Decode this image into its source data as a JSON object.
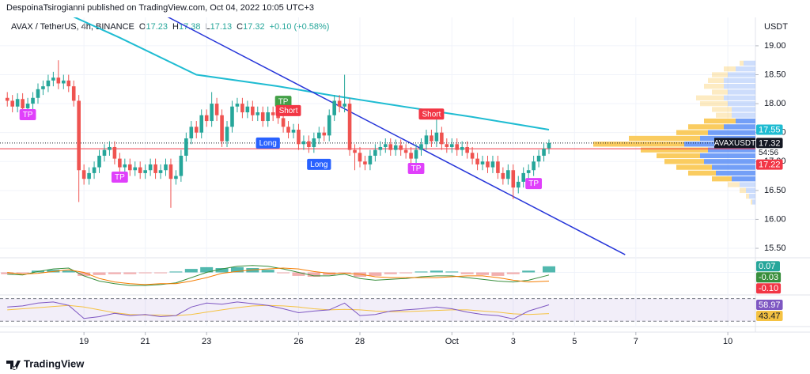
{
  "header": {
    "publisher": "DespoinaTsirogianni published on TradingView.com, Oct 04, 2022 10:05 UTC+3"
  },
  "footer": {
    "brand": "TradingView"
  },
  "chart_data": [
    {
      "type": "candlestick",
      "title": "AVAX / TetherUS, 4h, BINANCE",
      "legend": [
        {
          "label": "O",
          "value": "17.23"
        },
        {
          "label": "H",
          "value": "17.38"
        },
        {
          "label": "L",
          "value": "17.13"
        },
        {
          "label": "C",
          "value": "17.32"
        }
      ],
      "change": "+0.10 (+0.58%)",
      "y_unit": "USDT",
      "xlim": [
        -1.43,
        146.4
      ],
      "ylim": [
        15.35,
        19.45
      ],
      "xticks": [
        {
          "value": 15,
          "label": "19"
        },
        {
          "value": 27,
          "label": "21"
        },
        {
          "value": 39,
          "label": "23"
        },
        {
          "value": 57,
          "label": "26"
        },
        {
          "value": 69,
          "label": "28"
        },
        {
          "value": 87,
          "label": "Oct"
        },
        {
          "value": 99,
          "label": "3"
        },
        {
          "value": 111,
          "label": "5"
        },
        {
          "value": 123,
          "label": "7"
        },
        {
          "value": 141,
          "label": "10"
        }
      ],
      "yticks": [
        {
          "value": 19,
          "label": "19.00"
        },
        {
          "value": 18.5,
          "label": "18.50"
        },
        {
          "value": 18,
          "label": "18.00"
        },
        {
          "value": 17.5,
          "label": "17.50"
        },
        {
          "value": 17,
          "label": "17.00"
        },
        {
          "value": 16.5,
          "label": "16.50"
        },
        {
          "value": 16,
          "label": "16.00"
        },
        {
          "value": 15.5,
          "label": "15.50"
        }
      ],
      "grid": true,
      "up_color": "#26a69a",
      "down_color": "#ef5350",
      "open": [
        18.1,
        18.05,
        17.95,
        18.08,
        17.92,
        18.0,
        18.1,
        18.25,
        18.3,
        18.4,
        18.45,
        18.35,
        18.4,
        18.3,
        18.05,
        16.85,
        16.7,
        16.8,
        16.9,
        17.1,
        17.2,
        17.25,
        17.05,
        16.9,
        16.95,
        16.85,
        16.9,
        16.8,
        16.85,
        16.95,
        16.8,
        16.85,
        16.95,
        16.7,
        16.75,
        17.1,
        17.4,
        17.6,
        17.5,
        17.8,
        17.7,
        18.0,
        17.8,
        17.35,
        17.6,
        17.95,
        18.0,
        17.85,
        17.95,
        17.8,
        17.85,
        17.7,
        17.85,
        17.8,
        17.75,
        17.6,
        17.5,
        17.55,
        17.3,
        17.35,
        17.25,
        17.4,
        17.5,
        17.45,
        17.8,
        18.05,
        17.95,
        18.0,
        17.2,
        17.15,
        17.0,
        16.95,
        17.1,
        17.2,
        17.25,
        17.3,
        17.2,
        17.28,
        17.2,
        17.15,
        17.05,
        17.2,
        17.3,
        17.45,
        17.35,
        17.5,
        17.3,
        17.25,
        17.3,
        17.2,
        17.25,
        17.15,
        17.05,
        16.95,
        17.0,
        16.9,
        17.0,
        16.8,
        16.7,
        16.85,
        16.55,
        16.65,
        16.8,
        16.85,
        17.0,
        17.1,
        17.23
      ],
      "high": [
        18.2,
        18.15,
        18.18,
        18.18,
        18.1,
        18.2,
        18.35,
        18.4,
        18.5,
        18.55,
        18.75,
        18.5,
        18.5,
        18.4,
        18.15,
        16.95,
        16.9,
        17.0,
        17.2,
        17.3,
        17.35,
        17.35,
        17.15,
        17.05,
        17.05,
        17.0,
        17.0,
        16.95,
        17.05,
        17.05,
        16.95,
        17.05,
        17.05,
        16.85,
        17.2,
        17.5,
        17.7,
        17.7,
        17.9,
        17.9,
        18.2,
        18.1,
        17.9,
        17.7,
        18.05,
        18.1,
        18.1,
        18.05,
        18.05,
        17.95,
        17.95,
        17.95,
        17.95,
        17.9,
        17.85,
        17.7,
        17.65,
        17.65,
        17.45,
        17.45,
        17.5,
        17.6,
        17.6,
        17.9,
        18.15,
        18.15,
        18.5,
        18.1,
        17.3,
        17.25,
        17.1,
        17.2,
        17.3,
        17.35,
        17.4,
        17.4,
        17.38,
        17.38,
        17.3,
        17.25,
        17.3,
        17.4,
        17.55,
        17.55,
        17.75,
        17.6,
        17.4,
        17.4,
        17.4,
        17.35,
        17.35,
        17.25,
        17.15,
        17.1,
        17.1,
        17.1,
        17.1,
        16.9,
        16.95,
        16.95,
        16.75,
        16.9,
        16.95,
        17.1,
        17.2,
        17.32,
        17.38
      ],
      "low": [
        17.95,
        17.85,
        17.85,
        17.82,
        17.82,
        17.9,
        18.0,
        18.15,
        18.2,
        18.3,
        18.25,
        18.25,
        18.2,
        17.95,
        16.3,
        16.6,
        16.6,
        16.7,
        16.8,
        17.0,
        17.1,
        16.95,
        16.8,
        16.8,
        16.75,
        16.75,
        16.7,
        16.7,
        16.75,
        16.7,
        16.7,
        16.75,
        16.2,
        16.6,
        16.65,
        17.0,
        17.3,
        17.4,
        17.4,
        17.6,
        17.6,
        17.7,
        17.25,
        17.25,
        17.5,
        17.85,
        17.75,
        17.75,
        17.7,
        17.7,
        17.6,
        17.6,
        17.7,
        17.65,
        17.5,
        17.4,
        17.4,
        17.2,
        17.2,
        17.15,
        17.15,
        17.3,
        17.35,
        17.35,
        17.7,
        17.85,
        17.85,
        17.1,
        16.85,
        16.9,
        16.85,
        16.85,
        17.0,
        17.1,
        17.15,
        17.1,
        17.1,
        17.1,
        17.05,
        16.95,
        16.95,
        17.1,
        17.2,
        17.25,
        17.25,
        17.2,
        17.15,
        17.15,
        17.1,
        17.1,
        17.05,
        16.95,
        16.85,
        16.85,
        16.8,
        16.8,
        16.7,
        16.6,
        16.6,
        16.35,
        16.45,
        16.55,
        16.7,
        16.75,
        16.9,
        17.0,
        17.13
      ],
      "close": [
        18.05,
        17.95,
        18.08,
        17.92,
        18.0,
        18.1,
        18.25,
        18.3,
        18.4,
        18.45,
        18.35,
        18.4,
        18.3,
        18.05,
        16.85,
        16.7,
        16.8,
        16.9,
        17.1,
        17.2,
        17.25,
        17.05,
        16.9,
        16.95,
        16.85,
        16.9,
        16.8,
        16.85,
        16.95,
        16.8,
        16.85,
        16.95,
        16.7,
        16.75,
        17.1,
        17.4,
        17.6,
        17.5,
        17.8,
        17.7,
        18.0,
        17.8,
        17.35,
        17.6,
        17.95,
        18.0,
        17.85,
        17.95,
        17.8,
        17.85,
        17.7,
        17.85,
        17.8,
        17.75,
        17.6,
        17.5,
        17.55,
        17.3,
        17.35,
        17.25,
        17.4,
        17.5,
        17.45,
        17.8,
        18.05,
        17.95,
        18.0,
        17.2,
        17.15,
        17.0,
        16.95,
        17.1,
        17.2,
        17.25,
        17.3,
        17.2,
        17.28,
        17.2,
        17.15,
        17.05,
        17.2,
        17.3,
        17.45,
        17.35,
        17.5,
        17.3,
        17.25,
        17.3,
        17.2,
        17.25,
        17.15,
        17.05,
        16.95,
        17.0,
        16.9,
        17.0,
        16.8,
        16.7,
        16.85,
        16.55,
        16.65,
        16.8,
        16.85,
        17.0,
        17.1,
        17.22,
        17.32
      ],
      "ma": {
        "color": "#1fbcd2",
        "x": [
          13,
          22,
          37,
          53,
          63,
          76,
          91,
          106
        ],
        "values": [
          19.5,
          19.14,
          18.5,
          18.3,
          18.15,
          17.97,
          17.77,
          17.55
        ]
      },
      "trendline": {
        "color": "#2736d9",
        "x": [
          30.3,
          120.9
        ],
        "values": [
          19.55,
          15.39
        ]
      },
      "price_lines": [
        {
          "value": 17.22,
          "color": "#f23645"
        },
        {
          "value": 17.32,
          "color": "#131722",
          "symbol": "AVAXUSDT",
          "countdown": "54:56"
        }
      ],
      "signals": [
        {
          "text": "TP",
          "x": 4,
          "y": 17.81,
          "color": "#e040fb"
        },
        {
          "text": "TP",
          "x": 22,
          "y": 16.73,
          "color": "#e040fb"
        },
        {
          "text": "Long",
          "x": 51,
          "y": 17.32,
          "color": "#2962ff"
        },
        {
          "text": "TP",
          "x": 54,
          "y": 18.04,
          "color": "#43a047"
        },
        {
          "text": "Short",
          "x": 55,
          "y": 17.88,
          "color": "#f23645"
        },
        {
          "text": "Long",
          "x": 61,
          "y": 16.95,
          "color": "#2962ff"
        },
        {
          "text": "TP",
          "x": 80,
          "y": 16.88,
          "color": "#e040fb"
        },
        {
          "text": "Short",
          "x": 83,
          "y": 17.82,
          "color": "#f23645"
        },
        {
          "text": "TP",
          "x": 103,
          "y": 16.62,
          "color": "#e040fb"
        }
      ],
      "volume_profile": {
        "prices": [
          18.7,
          18.6,
          18.5,
          18.4,
          18.3,
          18.2,
          18.1,
          18.0,
          17.9,
          17.8,
          17.7,
          17.6,
          17.5,
          17.4,
          17.3,
          17.2,
          17.1,
          17.0,
          16.9,
          16.8,
          16.7,
          16.6,
          16.5,
          16.4,
          16.3
        ],
        "up": [
          15,
          25,
          35,
          40,
          40,
          35,
          40,
          35,
          30,
          30,
          25,
          40,
          60,
          70,
          90,
          60,
          70,
          65,
          55,
          50,
          30,
          20,
          12,
          8,
          4
        ],
        "down": [
          5,
          15,
          20,
          20,
          25,
          20,
          35,
          35,
          25,
          20,
          40,
          45,
          40,
          90,
          115,
          85,
          55,
          50,
          45,
          35,
          25,
          15,
          8,
          4,
          2
        ],
        "up_color": "#5b8ef6",
        "down_color": "#f9c74f",
        "value_area": [
          16.65,
          17.75
        ]
      }
    },
    {
      "type": "macd",
      "ylim": [
        -0.25,
        0.15
      ],
      "x": [
        0,
        3,
        6,
        9,
        12,
        15,
        18,
        21,
        24,
        27,
        30,
        33,
        36,
        39,
        42,
        45,
        48,
        51,
        54,
        57,
        60,
        63,
        66,
        69,
        72,
        75,
        78,
        81,
        84,
        87,
        90,
        93,
        96,
        99,
        102,
        106
      ],
      "histogram": {
        "up_color": "#26a69a",
        "down_color": "#ef9a9a",
        "values": [
          -0.02,
          -0.01,
          0.02,
          0.03,
          0.02,
          -0.04,
          -0.03,
          -0.02,
          -0.02,
          -0.01,
          -0.01,
          0.01,
          0.04,
          0.06,
          0.05,
          0.06,
          0.05,
          0.03,
          -0.01,
          -0.04,
          -0.05,
          -0.03,
          -0.01,
          -0.05,
          -0.04,
          -0.02,
          -0.01,
          0.01,
          0.02,
          0.01,
          -0.02,
          -0.03,
          -0.04,
          -0.02,
          0.02,
          0.07
        ]
      },
      "macd": {
        "color": "#388e3c",
        "values": [
          -0.02,
          -0.03,
          0.01,
          0.04,
          0.05,
          -0.04,
          -0.1,
          -0.13,
          -0.15,
          -0.15,
          -0.14,
          -0.12,
          -0.06,
          0.0,
          0.04,
          0.07,
          0.08,
          0.07,
          0.04,
          0.0,
          -0.04,
          -0.04,
          -0.02,
          -0.07,
          -0.09,
          -0.08,
          -0.07,
          -0.05,
          -0.04,
          -0.04,
          -0.06,
          -0.08,
          -0.1,
          -0.11,
          -0.09,
          -0.03
        ]
      },
      "signal": {
        "color": "#f57c00",
        "label_color": "#f23645",
        "last_value_label": "-0.10",
        "values": [
          0.0,
          -0.02,
          -0.01,
          0.01,
          0.03,
          0.0,
          -0.07,
          -0.11,
          -0.13,
          -0.14,
          -0.13,
          -0.13,
          -0.1,
          -0.06,
          -0.01,
          0.01,
          0.03,
          0.04,
          0.05,
          0.04,
          0.01,
          -0.01,
          -0.01,
          -0.02,
          -0.05,
          -0.06,
          -0.06,
          -0.06,
          -0.06,
          -0.05,
          -0.04,
          -0.04,
          -0.06,
          -0.09,
          -0.11,
          -0.1
        ]
      }
    },
    {
      "type": "rsi",
      "ylim": [
        22,
        75
      ],
      "band": [
        30,
        70
      ],
      "x": [
        0,
        3,
        6,
        9,
        12,
        15,
        18,
        21,
        24,
        27,
        30,
        33,
        36,
        39,
        42,
        45,
        48,
        51,
        54,
        57,
        60,
        63,
        66,
        69,
        72,
        75,
        78,
        81,
        84,
        87,
        90,
        93,
        96,
        99,
        102,
        106
      ],
      "rsi": {
        "color": "#7e57c2",
        "values": [
          55,
          57,
          62,
          64,
          58,
          35,
          38,
          44,
          40,
          42,
          38,
          40,
          55,
          62,
          60,
          64,
          61,
          58,
          52,
          45,
          48,
          50,
          62,
          40,
          42,
          48,
          50,
          52,
          55,
          52,
          46,
          42,
          40,
          34,
          48,
          58.97
        ]
      },
      "ma": {
        "color": "#f5c242",
        "values": [
          50,
          52,
          54,
          56,
          58,
          55,
          50,
          45,
          42,
          41,
          41,
          40,
          42,
          46,
          50,
          54,
          57,
          58,
          57,
          55,
          52,
          50,
          51,
          50,
          48,
          47,
          47,
          48,
          49,
          50,
          50,
          48,
          46,
          43,
          42,
          43.47
        ]
      }
    }
  ]
}
